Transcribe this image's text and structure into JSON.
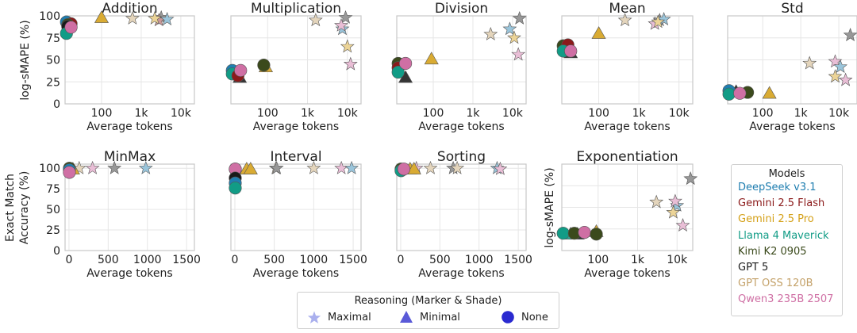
{
  "legend": {
    "title": "Models",
    "items": [
      {
        "label": "DeepSeek v3.1",
        "color": "#1f7eb0"
      },
      {
        "label": "Gemini 2.5 Flash",
        "color": "#8b1a1a"
      },
      {
        "label": "Gemini 2.5 Pro",
        "color": "#d4a017"
      },
      {
        "label": "Llama 4 Maverick",
        "color": "#119c86"
      },
      {
        "label": "Kimi K2 0905",
        "color": "#3b4a1c"
      },
      {
        "label": "GPT 5",
        "color": "#1a1a1a"
      },
      {
        "label": "GPT OSS 120B",
        "color": "#c4a26a"
      },
      {
        "label": "Qwen3 235B 2507",
        "color": "#cf6fa4"
      }
    ]
  },
  "reasoning_legend": {
    "title": "Reasoning (Marker & Shade)",
    "items": [
      {
        "label": "Maximal",
        "marker": "star",
        "color": "#aab0ee"
      },
      {
        "label": "Minimal",
        "marker": "triangle",
        "color": "#5a5ad8"
      },
      {
        "label": "None",
        "marker": "circle",
        "color": "#2a2ad0"
      }
    ]
  },
  "row_labels": {
    "top": "log-sMAPE (%)",
    "bottom_line1": "Exact Match",
    "bottom_line2": "Accuracy (%)",
    "exp": "log-sMAPE (%)"
  },
  "chart_data": [
    {
      "type": "scatter",
      "title": "Addition",
      "xlabel": "Average tokens",
      "ylabel": "log-sMAPE (%)",
      "xscale": "log",
      "xlim": [
        12,
        22000
      ],
      "ylim": [
        0,
        100
      ],
      "xticks": [
        "100",
        "1k",
        "10k"
      ],
      "yticks": [
        "0",
        "25",
        "50",
        "75",
        "100"
      ],
      "points": [
        {
          "model": "DeepSeek v3.1",
          "r": "None",
          "x": 13,
          "y": 93
        },
        {
          "model": "Gemini 2.5 Flash",
          "r": "None",
          "x": 17,
          "y": 91
        },
        {
          "model": "Kimi K2 0905",
          "r": "None",
          "x": 14,
          "y": 90
        },
        {
          "model": "GPT 5",
          "r": "None",
          "x": 14,
          "y": 88
        },
        {
          "model": "Llama 4 Maverick",
          "r": "None",
          "x": 13,
          "y": 80
        },
        {
          "model": "Qwen3 235B 2507",
          "r": "None",
          "x": 17,
          "y": 87
        },
        {
          "model": "Gemini 2.5 Pro",
          "r": "Minimal",
          "x": 100,
          "y": 98
        },
        {
          "model": "GPT OSS 120B",
          "r": "Maximal",
          "x": 600,
          "y": 97
        },
        {
          "model": "GPT 5",
          "r": "Maximal",
          "x": 3200,
          "y": 98
        },
        {
          "model": "Gemini 2.5 Flash",
          "r": "Maximal",
          "x": 2800,
          "y": 95
        },
        {
          "model": "DeepSeek v3.1",
          "r": "Maximal",
          "x": 4500,
          "y": 96
        },
        {
          "model": "Gemini 2.5 Pro",
          "r": "Maximal",
          "x": 2200,
          "y": 97
        }
      ]
    },
    {
      "type": "scatter",
      "title": "Multiplication",
      "xlabel": "Average tokens",
      "ylabel": "",
      "xscale": "log",
      "xlim": [
        12,
        22000
      ],
      "ylim": [
        0,
        100
      ],
      "xticks": [
        "100",
        "1k",
        "10k"
      ],
      "yticks": [],
      "points": [
        {
          "model": "DeepSeek v3.1",
          "r": "None",
          "x": 13,
          "y": 38
        },
        {
          "model": "Llama 4 Maverick",
          "r": "None",
          "x": 13,
          "y": 34
        },
        {
          "model": "Gemini 2.5 Flash",
          "r": "None",
          "x": 18,
          "y": 32
        },
        {
          "model": "Qwen3 235B 2507",
          "r": "None",
          "x": 21,
          "y": 38
        },
        {
          "model": "Kimi K2 0905",
          "r": "None",
          "x": 80,
          "y": 44
        },
        {
          "model": "GPT 5",
          "r": "Minimal",
          "x": 20,
          "y": 30
        },
        {
          "model": "Gemini 2.5 Pro",
          "r": "Minimal",
          "x": 90,
          "y": 42
        },
        {
          "model": "GPT OSS 120B",
          "r": "Maximal",
          "x": 1600,
          "y": 95
        },
        {
          "model": "GPT 5",
          "r": "Maximal",
          "x": 9000,
          "y": 98
        },
        {
          "model": "DeepSeek v3.1",
          "r": "Maximal",
          "x": 7500,
          "y": 85
        },
        {
          "model": "Qwen3 235B 2507",
          "r": "Maximal",
          "x": 7000,
          "y": 89
        },
        {
          "model": "Gemini 2.5 Pro",
          "r": "Maximal",
          "x": 10000,
          "y": 65
        },
        {
          "model": "Qwen3 235B 2507",
          "r": "Maximal",
          "x": 12000,
          "y": 45
        }
      ]
    },
    {
      "type": "scatter",
      "title": "Division",
      "xlabel": "Average tokens",
      "ylabel": "",
      "xscale": "log",
      "xlim": [
        12,
        22000
      ],
      "ylim": [
        0,
        100
      ],
      "xticks": [
        "100",
        "1k",
        "10k"
      ],
      "yticks": [],
      "points": [
        {
          "model": "Kimi K2 0905",
          "r": "None",
          "x": 13,
          "y": 46
        },
        {
          "model": "Gemini 2.5 Flash",
          "r": "None",
          "x": 13,
          "y": 41
        },
        {
          "model": "Llama 4 Maverick",
          "r": "None",
          "x": 13,
          "y": 36
        },
        {
          "model": "Qwen3 235B 2507",
          "r": "None",
          "x": 20,
          "y": 46
        },
        {
          "model": "GPT 5",
          "r": "Minimal",
          "x": 20,
          "y": 30
        },
        {
          "model": "Gemini 2.5 Pro",
          "r": "Minimal",
          "x": 90,
          "y": 51
        },
        {
          "model": "GPT OSS 120B",
          "r": "Maximal",
          "x": 2800,
          "y": 79
        },
        {
          "model": "DeepSeek v3.1",
          "r": "Maximal",
          "x": 8500,
          "y": 85
        },
        {
          "model": "GPT 5",
          "r": "Maximal",
          "x": 15000,
          "y": 97
        },
        {
          "model": "Gemini 2.5 Pro",
          "r": "Maximal",
          "x": 11000,
          "y": 75
        },
        {
          "model": "Qwen3 235B 2507",
          "r": "Maximal",
          "x": 14000,
          "y": 56
        }
      ]
    },
    {
      "type": "scatter",
      "title": "Mean",
      "xlabel": "Average tokens",
      "ylabel": "",
      "xscale": "log",
      "xlim": [
        12,
        22000
      ],
      "ylim": [
        0,
        100
      ],
      "xticks": [
        "100",
        "1k",
        "10k"
      ],
      "yticks": [],
      "points": [
        {
          "model": "Kimi K2 0905",
          "r": "None",
          "x": 13,
          "y": 66
        },
        {
          "model": "Gemini 2.5 Flash",
          "r": "None",
          "x": 17,
          "y": 67
        },
        {
          "model": "Llama 4 Maverick",
          "r": "None",
          "x": 13,
          "y": 60
        },
        {
          "model": "Qwen3 235B 2507",
          "r": "None",
          "x": 20,
          "y": 60
        },
        {
          "model": "GPT 5",
          "r": "Minimal",
          "x": 20,
          "y": 58
        },
        {
          "model": "Gemini 2.5 Pro",
          "r": "Minimal",
          "x": 100,
          "y": 80
        },
        {
          "model": "GPT OSS 120B",
          "r": "Maximal",
          "x": 450,
          "y": 95
        },
        {
          "model": "Qwen3 235B 2507",
          "r": "Maximal",
          "x": 2500,
          "y": 91
        },
        {
          "model": "GPT 5",
          "r": "Maximal",
          "x": 3300,
          "y": 95
        },
        {
          "model": "DeepSeek v3.1",
          "r": "Maximal",
          "x": 4200,
          "y": 96
        },
        {
          "model": "Gemini 2.5 Pro",
          "r": "Maximal",
          "x": 3000,
          "y": 93
        }
      ]
    },
    {
      "type": "scatter",
      "title": "Std",
      "xlabel": "Average tokens",
      "ylabel": "",
      "xscale": "log",
      "xlim": [
        12,
        30000
      ],
      "ylim": [
        0,
        100
      ],
      "xticks": [
        "100",
        "1k",
        "10k"
      ],
      "yticks": [],
      "points": [
        {
          "model": "DeepSeek v3.1",
          "r": "None",
          "x": 13,
          "y": 15
        },
        {
          "model": "Llama 4 Maverick",
          "r": "None",
          "x": 13,
          "y": 11
        },
        {
          "model": "Kimi K2 0905",
          "r": "None",
          "x": 40,
          "y": 13
        },
        {
          "model": "Qwen3 235B 2507",
          "r": "None",
          "x": 25,
          "y": 12
        },
        {
          "model": "GPT 5",
          "r": "Minimal",
          "x": 20,
          "y": 14
        },
        {
          "model": "Gemini 2.5 Pro",
          "r": "Minimal",
          "x": 150,
          "y": 12
        },
        {
          "model": "GPT OSS 120B",
          "r": "Maximal",
          "x": 1700,
          "y": 46
        },
        {
          "model": "Qwen3 235B 2507",
          "r": "Maximal",
          "x": 8000,
          "y": 48
        },
        {
          "model": "DeepSeek v3.1",
          "r": "Maximal",
          "x": 11000,
          "y": 42
        },
        {
          "model": "Gemini 2.5 Pro",
          "r": "Maximal",
          "x": 8000,
          "y": 31
        },
        {
          "model": "Qwen3 235B 2507",
          "r": "Maximal",
          "x": 15000,
          "y": 27
        },
        {
          "model": "GPT 5",
          "r": "Maximal",
          "x": 20000,
          "y": 78
        }
      ]
    },
    {
      "type": "scatter",
      "title": "MinMax",
      "xlabel": "Average tokens",
      "ylabel": "Exact Match Accuracy (%)",
      "xscale": "linear",
      "xlim": [
        -50,
        1600
      ],
      "ylim": [
        0,
        105
      ],
      "xticks": [
        "0",
        "500",
        "1000",
        "1500"
      ],
      "yticks": [
        "0",
        "25",
        "50",
        "75",
        "100"
      ],
      "points": [
        {
          "model": "Kimi K2 0905",
          "r": "None",
          "x": 5,
          "y": 100
        },
        {
          "model": "DeepSeek v3.1",
          "r": "None",
          "x": 5,
          "y": 98
        },
        {
          "model": "Qwen3 235B 2507",
          "r": "None",
          "x": 5,
          "y": 95
        },
        {
          "model": "Gemini 2.5 Pro",
          "r": "Minimal",
          "x": 50,
          "y": 99
        },
        {
          "model": "GPT OSS 120B",
          "r": "Maximal",
          "x": 130,
          "y": 100
        },
        {
          "model": "Qwen3 235B 2507",
          "r": "Maximal",
          "x": 300,
          "y": 100
        },
        {
          "model": "GPT 5",
          "r": "Maximal",
          "x": 580,
          "y": 100
        },
        {
          "model": "DeepSeek v3.1",
          "r": "Maximal",
          "x": 980,
          "y": 100
        }
      ]
    },
    {
      "type": "scatter",
      "title": "Interval",
      "xlabel": "Average tokens",
      "ylabel": "",
      "xscale": "linear",
      "xlim": [
        -50,
        1600
      ],
      "ylim": [
        0,
        105
      ],
      "xticks": [
        "0",
        "500",
        "1000",
        "1500"
      ],
      "yticks": [],
      "points": [
        {
          "model": "Gemini 2.5 Flash",
          "r": "None",
          "x": 5,
          "y": 99
        },
        {
          "model": "Qwen3 235B 2507",
          "r": "None",
          "x": 5,
          "y": 99
        },
        {
          "model": "GPT 5",
          "r": "None",
          "x": 5,
          "y": 88
        },
        {
          "model": "DeepSeek v3.1",
          "r": "None",
          "x": 5,
          "y": 82
        },
        {
          "model": "Llama 4 Maverick",
          "r": "None",
          "x": 5,
          "y": 76
        },
        {
          "model": "Gemini 2.5 Pro",
          "r": "Minimal",
          "x": 150,
          "y": 99
        },
        {
          "model": "Gemini 2.5 Pro",
          "r": "Minimal",
          "x": 200,
          "y": 99
        },
        {
          "model": "GPT OSS 120B",
          "r": "Maximal",
          "x": 520,
          "y": 100
        },
        {
          "model": "GPT 5",
          "r": "Maximal",
          "x": 530,
          "y": 100
        },
        {
          "model": "GPT OSS 120B",
          "r": "Maximal",
          "x": 1000,
          "y": 100
        },
        {
          "model": "Qwen3 235B 2507",
          "r": "Maximal",
          "x": 1350,
          "y": 100
        },
        {
          "model": "DeepSeek v3.1",
          "r": "Maximal",
          "x": 1480,
          "y": 100
        }
      ]
    },
    {
      "type": "scatter",
      "title": "Sorting",
      "xlabel": "Average tokens",
      "ylabel": "",
      "xscale": "linear",
      "xlim": [
        -50,
        1600
      ],
      "ylim": [
        0,
        105
      ],
      "xticks": [
        "0",
        "500",
        "1000",
        "1500"
      ],
      "yticks": [],
      "points": [
        {
          "model": "Kimi K2 0905",
          "r": "None",
          "x": 5,
          "y": 99
        },
        {
          "model": "Llama 4 Maverick",
          "r": "None",
          "x": 5,
          "y": 97
        },
        {
          "model": "Qwen3 235B 2507",
          "r": "None",
          "x": 40,
          "y": 99
        },
        {
          "model": "Gemini 2.5 Pro",
          "r": "Minimal",
          "x": 120,
          "y": 99
        },
        {
          "model": "Gemini 2.5 Pro",
          "r": "Minimal",
          "x": 170,
          "y": 99
        },
        {
          "model": "Qwen3 235B 2507",
          "r": "Maximal",
          "x": 200,
          "y": 100
        },
        {
          "model": "GPT OSS 120B",
          "r": "Maximal",
          "x": 380,
          "y": 100
        },
        {
          "model": "GPT 5",
          "r": "Maximal",
          "x": 670,
          "y": 100
        },
        {
          "model": "GPT OSS 120B",
          "r": "Maximal",
          "x": 720,
          "y": 100
        },
        {
          "model": "DeepSeek v3.1",
          "r": "Maximal",
          "x": 1230,
          "y": 100
        },
        {
          "model": "Qwen3 235B 2507",
          "r": "Maximal",
          "x": 1270,
          "y": 99
        }
      ]
    },
    {
      "type": "scatter",
      "title": "Exponentiation",
      "xlabel": "Average tokens",
      "ylabel": "log-sMAPE (%)",
      "xscale": "log",
      "xlim": [
        12,
        25000
      ],
      "ylim": [
        0,
        100
      ],
      "xticks": [
        "100",
        "1k",
        "10k"
      ],
      "yticks": [],
      "points": [
        {
          "model": "Llama 4 Maverick",
          "r": "None",
          "x": 13,
          "y": 20
        },
        {
          "model": "Kimi K2 0905",
          "r": "None",
          "x": 25,
          "y": 20
        },
        {
          "model": "Qwen3 235B 2507",
          "r": "None",
          "x": 45,
          "y": 21
        },
        {
          "model": "Kimi K2 0905",
          "r": "None",
          "x": 90,
          "y": 19
        },
        {
          "model": "Llama 4 Maverick",
          "r": "Minimal",
          "x": 20,
          "y": 19
        },
        {
          "model": "GPT 5",
          "r": "Minimal",
          "x": 30,
          "y": 19
        },
        {
          "model": "Gemini 2.5 Pro",
          "r": "Minimal",
          "x": 90,
          "y": 22
        },
        {
          "model": "GPT OSS 120B",
          "r": "Maximal",
          "x": 3000,
          "y": 56
        },
        {
          "model": "DeepSeek v3.1",
          "r": "Maximal",
          "x": 10000,
          "y": 52
        },
        {
          "model": "Qwen3 235B 2507",
          "r": "Maximal",
          "x": 9000,
          "y": 57
        },
        {
          "model": "Gemini 2.5 Pro",
          "r": "Maximal",
          "x": 8000,
          "y": 44
        },
        {
          "model": "Qwen3 235B 2507",
          "r": "Maximal",
          "x": 14000,
          "y": 29
        },
        {
          "model": "GPT 5",
          "r": "Maximal",
          "x": 22000,
          "y": 83
        }
      ]
    }
  ]
}
